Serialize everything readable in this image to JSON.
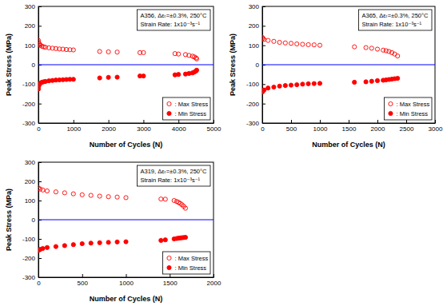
{
  "chart_data": [
    {
      "type": "scatter",
      "x_label": "Number of Cycles (N)",
      "y_label": "Peak Stress (MPa)",
      "annotations": [
        "A356, Δεₜ=±0.3%, 250°C",
        "Strain Rate: 1x10⁻³s⁻¹"
      ],
      "xlim": [
        0,
        5000
      ],
      "xticks": [
        0,
        1000,
        2000,
        3000,
        4000,
        5000
      ],
      "ylim": [
        -300,
        300
      ],
      "yticks": [
        -300,
        -200,
        -100,
        0,
        100,
        200,
        300
      ],
      "hline": 0,
      "legend": "lower right",
      "x": [
        1,
        10,
        30,
        60,
        100,
        150,
        200,
        300,
        400,
        500,
        600,
        700,
        800,
        900,
        1000,
        1750,
        2000,
        2250,
        2900,
        3000,
        3900,
        4000,
        4200,
        4300,
        4400,
        4450,
        4500,
        4520
      ],
      "series": [
        {
          "name": ": Max Stress",
          "color": "#ff0000",
          "marker": "circle-open",
          "values": [
            125,
            115,
            105,
            100,
            95,
            92,
            90,
            87,
            85,
            83,
            81,
            80,
            78,
            77,
            76,
            68,
            66,
            65,
            62,
            62,
            57,
            55,
            52,
            48,
            44,
            40,
            35,
            30
          ]
        },
        {
          "name": ": Min Stress",
          "color": "#ff0000",
          "marker": "circle",
          "values": [
            -125,
            -110,
            -100,
            -95,
            -90,
            -88,
            -86,
            -83,
            -81,
            -79,
            -78,
            -77,
            -76,
            -75,
            -75,
            -68,
            -65,
            -64,
            -58,
            -58,
            -52,
            -50,
            -48,
            -45,
            -42,
            -38,
            -32,
            -28
          ]
        }
      ]
    },
    {
      "type": "scatter",
      "x_label": "Number of Cycles (N)",
      "y_label": "Peak Stress (MPa)",
      "annotations": [
        "A365, Δεₜ=±0.3%, 250°C",
        "Strain Rate: 1x10⁻³s⁻¹"
      ],
      "xlim": [
        0,
        3000
      ],
      "xticks": [
        0,
        500,
        1000,
        1500,
        2000,
        2500,
        3000
      ],
      "ylim": [
        -300,
        300
      ],
      "yticks": [
        -300,
        -200,
        -100,
        0,
        100,
        200,
        300
      ],
      "hline": 0,
      "legend": "lower right",
      "x": [
        1,
        10,
        30,
        100,
        200,
        300,
        400,
        500,
        600,
        700,
        800,
        900,
        1000,
        1600,
        1800,
        1900,
        2000,
        2100,
        2150,
        2200,
        2250,
        2300,
        2350
      ],
      "series": [
        {
          "name": ": Max Stress",
          "color": "#ff0000",
          "marker": "circle-open",
          "values": [
            140,
            135,
            130,
            125,
            120,
            115,
            112,
            110,
            107,
            105,
            103,
            102,
            100,
            92,
            88,
            85,
            80,
            75,
            72,
            68,
            62,
            55,
            45
          ]
        },
        {
          "name": ": Min Stress",
          "color": "#ff0000",
          "marker": "circle",
          "values": [
            -140,
            -135,
            -130,
            -120,
            -115,
            -110,
            -107,
            -105,
            -103,
            -100,
            -98,
            -97,
            -96,
            -90,
            -88,
            -85,
            -82,
            -80,
            -78,
            -76,
            -74,
            -72,
            -70
          ]
        }
      ]
    },
    {
      "type": "scatter",
      "x_label": "Number of Cycles (N)",
      "y_label": "Peak Stress (MPa)",
      "annotations": [
        "A319, Δεₜ=±0.3%, 250°C",
        "Strain Rate: 1x10⁻³s⁻¹"
      ],
      "xlim": [
        0,
        2000
      ],
      "xticks": [
        0,
        500,
        1000,
        1500,
        2000
      ],
      "ylim": [
        -300,
        300
      ],
      "yticks": [
        -300,
        -200,
        -100,
        0,
        100,
        200,
        300
      ],
      "hline": 0,
      "legend": "lower right",
      "x": [
        1,
        20,
        50,
        100,
        200,
        300,
        400,
        500,
        600,
        700,
        800,
        900,
        1000,
        1400,
        1450,
        1550,
        1580,
        1600,
        1620,
        1640,
        1660,
        1680
      ],
      "series": [
        {
          "name": ": Max Stress",
          "color": "#ff0000",
          "marker": "circle-open",
          "values": [
            165,
            160,
            155,
            150,
            145,
            140,
            135,
            130,
            127,
            123,
            120,
            118,
            115,
            108,
            107,
            100,
            95,
            90,
            85,
            78,
            70,
            60
          ]
        },
        {
          "name": ": Min Stress",
          "color": "#ff0000",
          "marker": "circle",
          "values": [
            -160,
            -155,
            -150,
            -145,
            -140,
            -135,
            -130,
            -125,
            -122,
            -120,
            -118,
            -116,
            -115,
            -108,
            -105,
            -100,
            -98,
            -96,
            -95,
            -94,
            -93,
            -92
          ]
        }
      ]
    }
  ]
}
